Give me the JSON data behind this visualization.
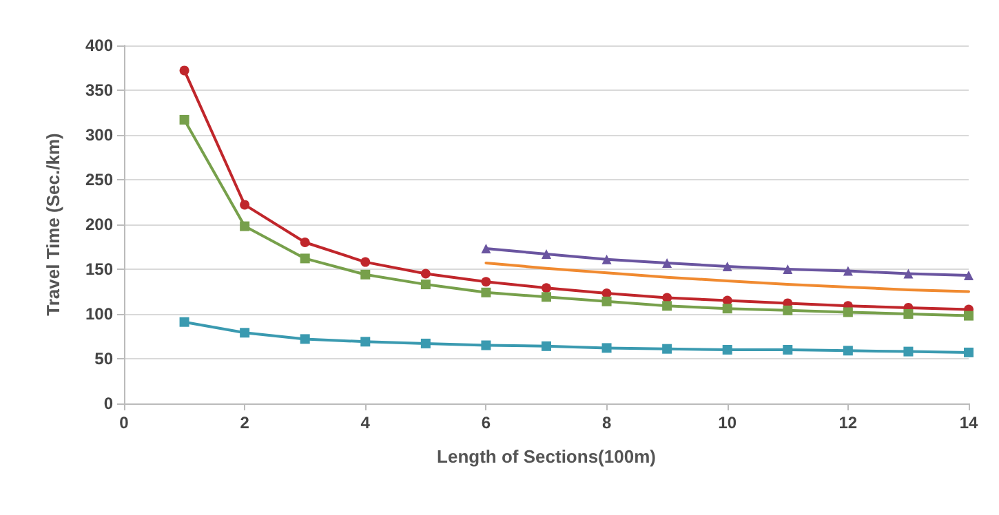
{
  "chart_data": {
    "type": "line",
    "xlabel": "Length of Sections(100m)",
    "ylabel": "Travel Time (Sec./km)",
    "xlim": [
      0,
      14
    ],
    "xticks": [
      0,
      2,
      4,
      6,
      8,
      10,
      12,
      14
    ],
    "ylim": [
      0,
      400
    ],
    "yticks": [
      0,
      50,
      100,
      150,
      200,
      250,
      300,
      350,
      400
    ],
    "grid": "y",
    "series": [
      {
        "color": "#c0262b",
        "marker": "circle",
        "x": [
          1,
          2,
          3,
          4,
          5,
          6,
          7,
          8,
          9,
          10,
          11,
          12,
          13,
          14
        ],
        "values": [
          372,
          222,
          180,
          158,
          145,
          136,
          129,
          123,
          118,
          115,
          112,
          109,
          107,
          105
        ]
      },
      {
        "color": "#77a04b",
        "marker": "square",
        "x": [
          1,
          2,
          3,
          4,
          5,
          6,
          7,
          8,
          9,
          10,
          11,
          12,
          13,
          14
        ],
        "values": [
          317,
          198,
          162,
          144,
          133,
          124,
          119,
          114,
          109,
          106,
          104,
          102,
          100,
          98
        ]
      },
      {
        "color": "#3a9ab0",
        "marker": "square",
        "x": [
          1,
          2,
          3,
          4,
          5,
          6,
          7,
          8,
          9,
          10,
          11,
          12,
          13,
          14
        ],
        "values": [
          91,
          79,
          72,
          69,
          67,
          65,
          64,
          62,
          61,
          60,
          60,
          59,
          58,
          57
        ]
      },
      {
        "color": "#6a55a0",
        "marker": "triangle",
        "x": [
          6,
          7,
          8,
          9,
          10,
          11,
          12,
          13,
          14
        ],
        "values": [
          173,
          167,
          161,
          157,
          153,
          150,
          148,
          145,
          143
        ]
      },
      {
        "color": "#f08a30",
        "marker": "none",
        "x": [
          6,
          7,
          8,
          9,
          10,
          11,
          12,
          13,
          14
        ],
        "values": [
          157,
          151,
          146,
          141,
          137,
          133,
          130,
          127,
          125
        ]
      }
    ]
  }
}
